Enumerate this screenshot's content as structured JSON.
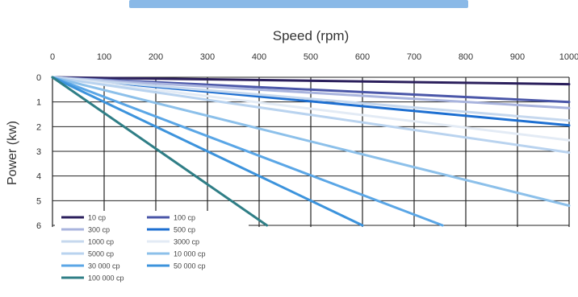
{
  "chart_data": {
    "type": "line",
    "title": "",
    "xlabel": "Speed (rpm)",
    "ylabel": "Power (kw)",
    "x_ticks": [
      0,
      100,
      200,
      300,
      400,
      500,
      600,
      700,
      800,
      900,
      1000
    ],
    "x_tick_labels": [
      "0",
      "100",
      "200",
      "300",
      "400",
      "500",
      "600",
      "700",
      "800",
      "900",
      "1000"
    ],
    "y_ticks": [
      0,
      1,
      2,
      3,
      4,
      5,
      6
    ],
    "y_tick_labels": [
      "0",
      "1",
      "2",
      "3",
      "4",
      "5",
      "6"
    ],
    "xlim": [
      0,
      1000
    ],
    "ylim": [
      0,
      6
    ],
    "y_inverted": true,
    "x_axis_position": "top",
    "grid": true,
    "legend_position": "bottom-left",
    "series": [
      {
        "name": "10 cp",
        "color": "#2b1f5c",
        "x": [
          0,
          1000
        ],
        "y": [
          0,
          0.28
        ]
      },
      {
        "name": "100 cp",
        "color": "#4a56a8",
        "x": [
          0,
          1000
        ],
        "y": [
          0,
          1.0
        ]
      },
      {
        "name": "300 cp",
        "color": "#a9b4de",
        "x": [
          0,
          1000
        ],
        "y": [
          0,
          1.25
        ]
      },
      {
        "name": "500 cp",
        "color": "#1d6fd1",
        "x": [
          0,
          1000
        ],
        "y": [
          0,
          1.95
        ]
      },
      {
        "name": "1000 cp",
        "color": "#c6d8ee",
        "x": [
          0,
          1000
        ],
        "y": [
          0,
          1.75
        ]
      },
      {
        "name": "3000 cp",
        "color": "#e3ebf5",
        "x": [
          0,
          1000
        ],
        "y": [
          0,
          2.55
        ]
      },
      {
        "name": "5000 cp",
        "color": "#b9d3ef",
        "x": [
          0,
          1000
        ],
        "y": [
          0,
          3.05
        ]
      },
      {
        "name": "10 000 cp",
        "color": "#8cc0ea",
        "x": [
          0,
          1000
        ],
        "y": [
          0,
          5.2
        ]
      },
      {
        "name": "30 000 cp",
        "color": "#5aa6e6",
        "x": [
          0,
          755
        ],
        "y": [
          0,
          6.0
        ]
      },
      {
        "name": "50 000 cp",
        "color": "#3c93dc",
        "x": [
          0,
          600
        ],
        "y": [
          0,
          6.0
        ]
      },
      {
        "name": "100 000 cp",
        "color": "#2f7e86",
        "x": [
          0,
          415
        ],
        "y": [
          0,
          6.0
        ]
      }
    ]
  }
}
